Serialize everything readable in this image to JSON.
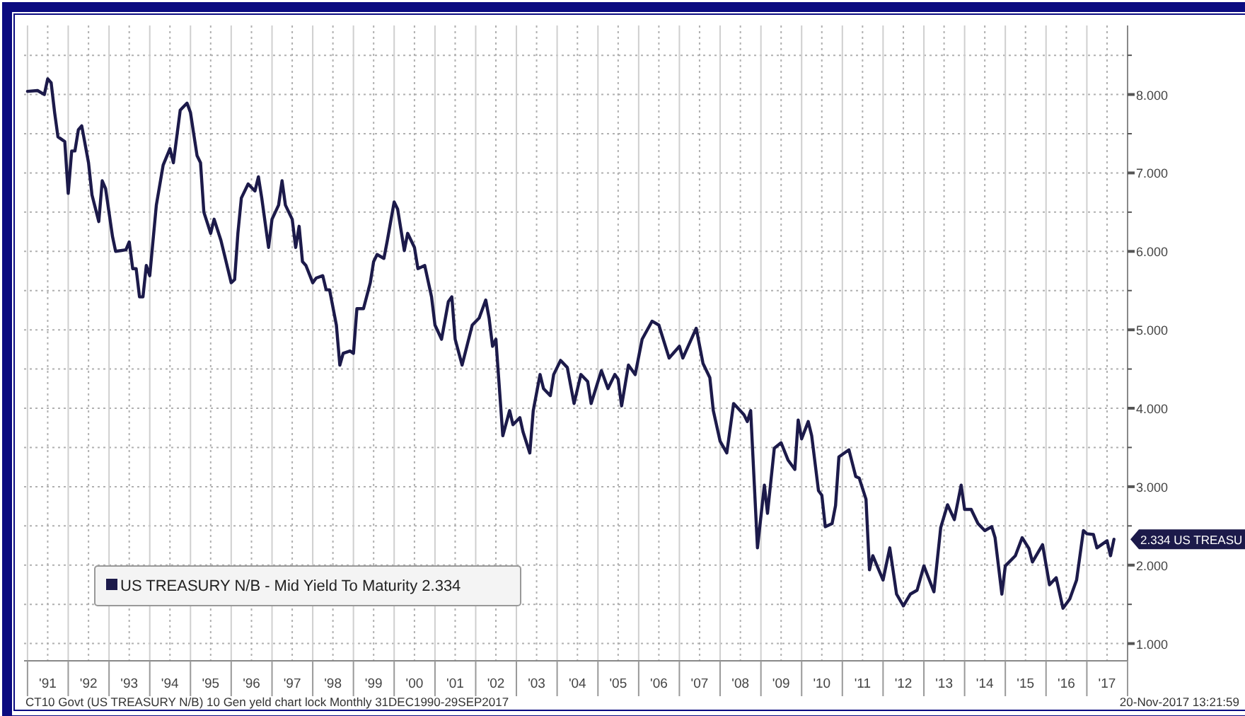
{
  "chart_data": {
    "type": "line",
    "legend": "bottom left",
    "grid": true,
    "marker": "none",
    "line_style": "solid",
    "xlim": [
      "1990-12",
      "2018-01"
    ],
    "ylim": [
      0.78,
      8.88
    ],
    "yticks": [
      {
        "value": 1,
        "label": "1.000"
      },
      {
        "value": 1.5,
        "label": null
      },
      {
        "value": 2,
        "label": "2.000"
      },
      {
        "value": 2.5,
        "label": null
      },
      {
        "value": 3,
        "label": "3.000"
      },
      {
        "value": 3.5,
        "label": null
      },
      {
        "value": 4,
        "label": "4.000"
      },
      {
        "value": 4.5,
        "label": null
      },
      {
        "value": 5,
        "label": "5.000"
      },
      {
        "value": 5.5,
        "label": null
      },
      {
        "value": 6,
        "label": "6.000"
      },
      {
        "value": 6.5,
        "label": null
      },
      {
        "value": 7,
        "label": "7.000"
      },
      {
        "value": 7.5,
        "label": null
      },
      {
        "value": 8,
        "label": "8.000"
      },
      {
        "value": 8.5,
        "label": null
      }
    ],
    "xticks": [
      {
        "value": "1991",
        "label": null
      },
      {
        "value": "1991-07",
        "label": "'91"
      },
      {
        "value": "1992",
        "label": null
      },
      {
        "value": "1992-07",
        "label": "'92"
      },
      {
        "value": "1993",
        "label": null
      },
      {
        "value": "1993-07",
        "label": "'93"
      },
      {
        "value": "1994",
        "label": null
      },
      {
        "value": "1994-07",
        "label": "'94"
      },
      {
        "value": "1995",
        "label": null
      },
      {
        "value": "1995-07",
        "label": "'95"
      },
      {
        "value": "1996",
        "label": null
      },
      {
        "value": "1996-07",
        "label": "'96"
      },
      {
        "value": "1997",
        "label": null
      },
      {
        "value": "1997-07",
        "label": "'97"
      },
      {
        "value": "1998",
        "label": null
      },
      {
        "value": "1998-07",
        "label": "'98"
      },
      {
        "value": "1999",
        "label": null
      },
      {
        "value": "1999-07",
        "label": "'99"
      },
      {
        "value": "2000",
        "label": null
      },
      {
        "value": "2000-07",
        "label": "'00"
      },
      {
        "value": "2001",
        "label": null
      },
      {
        "value": "2001-07",
        "label": "'01"
      },
      {
        "value": "2002",
        "label": null
      },
      {
        "value": "2002-07",
        "label": "'02"
      },
      {
        "value": "2003",
        "label": null
      },
      {
        "value": "2003-07",
        "label": "'03"
      },
      {
        "value": "2004",
        "label": null
      },
      {
        "value": "2004-07",
        "label": "'04"
      },
      {
        "value": "2005",
        "label": null
      },
      {
        "value": "2005-07",
        "label": "'05"
      },
      {
        "value": "2006",
        "label": null
      },
      {
        "value": "2006-07",
        "label": "'06"
      },
      {
        "value": "2007",
        "label": null
      },
      {
        "value": "2007-07",
        "label": "'07"
      },
      {
        "value": "2008",
        "label": null
      },
      {
        "value": "2008-07",
        "label": "'08"
      },
      {
        "value": "2009",
        "label": null
      },
      {
        "value": "2009-07",
        "label": "'09"
      },
      {
        "value": "2010",
        "label": null
      },
      {
        "value": "2010-07",
        "label": "'10"
      },
      {
        "value": "2011",
        "label": null
      },
      {
        "value": "2011-07",
        "label": "'11"
      },
      {
        "value": "2012",
        "label": null
      },
      {
        "value": "2012-07",
        "label": "'12"
      },
      {
        "value": "2013",
        "label": null
      },
      {
        "value": "2013-07",
        "label": "'13"
      },
      {
        "value": "2014",
        "label": null
      },
      {
        "value": "2014-07",
        "label": "'14"
      },
      {
        "value": "2015",
        "label": null
      },
      {
        "value": "2015-07",
        "label": "'15"
      },
      {
        "value": "2016",
        "label": null
      },
      {
        "value": "2016-07",
        "label": "'16"
      },
      {
        "value": "2017",
        "label": null
      },
      {
        "value": "2017-07",
        "label": "'17"
      },
      {
        "value": "2018",
        "label": null
      }
    ],
    "annotations": [
      "CT10 Govt (US TREASURY N/B) 10 Gen yeld chart lock  Monthly 31DEC1990-29SEP2017",
      "20-Nov-2017 13:21:59",
      "2.334 US TREASU"
    ],
    "series": [
      {
        "name": "US TREASURY N/B - Mid Yield To Maturity 2.334",
        "color": "#1c1a4a",
        "x": [
          "1991-01",
          "1991-04",
          "1991-06",
          "1991-07",
          "1991-08",
          "1991-09",
          "1991-10",
          "1991-12",
          "1992-01",
          "1992-02",
          "1992-03",
          "1992-04",
          "1992-05",
          "1992-07",
          "1992-08",
          "1992-10",
          "1992-11",
          "1992-12",
          "1993-02",
          "1993-03",
          "1993-06",
          "1993-07",
          "1993-08",
          "1993-09",
          "1993-10",
          "1993-11",
          "1993-12",
          "1994-01",
          "1994-03",
          "1994-05",
          "1994-07",
          "1994-08",
          "1994-10",
          "1994-12",
          "1995-01",
          "1995-03",
          "1995-04",
          "1995-05",
          "1995-07",
          "1995-08",
          "1995-10",
          "1995-11",
          "1996-01",
          "1996-02",
          "1996-03",
          "1996-04",
          "1996-06",
          "1996-08",
          "1996-09",
          "1996-10",
          "1996-12",
          "1997-01",
          "1997-03",
          "1997-04",
          "1997-05",
          "1997-07",
          "1997-08",
          "1997-09",
          "1997-10",
          "1997-11",
          "1998-01",
          "1998-02",
          "1998-04",
          "1998-05",
          "1998-06",
          "1998-08",
          "1998-09",
          "1998-10",
          "1998-12",
          "1999-01",
          "1999-02",
          "1999-04",
          "1999-06",
          "1999-07",
          "1999-08",
          "1999-10",
          "1999-11",
          "2000-01",
          "2000-02",
          "2000-04",
          "2000-05",
          "2000-07",
          "2000-08",
          "2000-10",
          "2000-12",
          "2001-01",
          "2001-03",
          "2001-05",
          "2001-06",
          "2001-07",
          "2001-09",
          "2001-12",
          "2002-02",
          "2002-04",
          "2002-05",
          "2002-06",
          "2002-07",
          "2002-09",
          "2002-11",
          "2002-12",
          "2003-02",
          "2003-03",
          "2003-05",
          "2003-06",
          "2003-08",
          "2003-09",
          "2003-11",
          "2003-12",
          "2004-02",
          "2004-04",
          "2004-06",
          "2004-08",
          "2004-10",
          "2004-11",
          "2005-01",
          "2005-02",
          "2005-04",
          "2005-06",
          "2005-07",
          "2005-08",
          "2005-10",
          "2005-12",
          "2006-02",
          "2006-05",
          "2006-07",
          "2006-10",
          "2007-01",
          "2007-02",
          "2007-06",
          "2007-08",
          "2007-10",
          "2007-11",
          "2008-01",
          "2008-03",
          "2008-05",
          "2008-08",
          "2008-09",
          "2008-10",
          "2008-12",
          "2009-02",
          "2009-03",
          "2009-05",
          "2009-07",
          "2009-09",
          "2009-11",
          "2009-12",
          "2010-01",
          "2010-03",
          "2010-04",
          "2010-06",
          "2010-07",
          "2010-08",
          "2010-10",
          "2010-11",
          "2010-12",
          "2011-03",
          "2011-05",
          "2011-06",
          "2011-08",
          "2011-09",
          "2011-10",
          "2012-01",
          "2012-03",
          "2012-05",
          "2012-07",
          "2012-09",
          "2012-11",
          "2013-01",
          "2013-04",
          "2013-06",
          "2013-08",
          "2013-10",
          "2013-12",
          "2014-01",
          "2014-03",
          "2014-05",
          "2014-07",
          "2014-09",
          "2014-10",
          "2014-12",
          "2015-01",
          "2015-04",
          "2015-06",
          "2015-08",
          "2015-09",
          "2015-12",
          "2016-02",
          "2016-04",
          "2016-06",
          "2016-08",
          "2016-10",
          "2016-12",
          "2017-01",
          "2017-03",
          "2017-04",
          "2017-07",
          "2017-08",
          "2017-09"
        ],
        "values": [
          8.04,
          8.05,
          8,
          8.2,
          8.15,
          7.77,
          7.46,
          7.4,
          6.74,
          7.28,
          7.28,
          7.55,
          7.6,
          7.13,
          6.72,
          6.38,
          6.9,
          6.8,
          6.19,
          6,
          6.02,
          6.12,
          5.78,
          5.78,
          5.42,
          5.42,
          5.82,
          5.69,
          6.59,
          7.1,
          7.31,
          7.13,
          7.8,
          7.89,
          7.77,
          7.22,
          7.13,
          6.5,
          6.23,
          6.41,
          6.14,
          5.96,
          5.6,
          5.64,
          6.23,
          6.68,
          6.86,
          6.77,
          6.95,
          6.68,
          6.05,
          6.41,
          6.59,
          6.9,
          6.59,
          6.41,
          6.05,
          6.32,
          5.87,
          5.82,
          5.6,
          5.66,
          5.69,
          5.51,
          5.51,
          5.06,
          4.55,
          4.7,
          4.73,
          4.7,
          5.27,
          5.27,
          5.6,
          5.87,
          5.96,
          5.91,
          6.14,
          6.63,
          6.54,
          6.01,
          6.23,
          6.05,
          5.78,
          5.82,
          5.42,
          5.06,
          4.88,
          5.36,
          5.42,
          4.88,
          4.55,
          5.06,
          5.15,
          5.38,
          5.15,
          4.79,
          4.88,
          3.65,
          3.97,
          3.79,
          3.88,
          3.7,
          3.43,
          3.97,
          4.43,
          4.25,
          4.16,
          4.43,
          4.61,
          4.52,
          4.06,
          4.43,
          4.34,
          4.06,
          4.34,
          4.48,
          4.25,
          4.43,
          4.37,
          4.03,
          4.55,
          4.43,
          4.88,
          5.11,
          5.06,
          4.64,
          4.79,
          4.64,
          5.02,
          4.57,
          4.39,
          3.97,
          3.58,
          3.43,
          4.06,
          3.92,
          3.83,
          3.97,
          2.22,
          3.02,
          2.66,
          3.49,
          3.56,
          3.34,
          3.22,
          3.85,
          3.61,
          3.83,
          3.65,
          2.95,
          2.89,
          2.49,
          2.53,
          2.76,
          3.38,
          3.47,
          3.13,
          3.11,
          2.84,
          1.94,
          2.12,
          1.81,
          2.22,
          1.63,
          1.48,
          1.63,
          1.68,
          1.99,
          1.66,
          2.48,
          2.77,
          2.58,
          3.02,
          2.71,
          2.71,
          2.53,
          2.44,
          2.49,
          2.35,
          1.63,
          1.99,
          2.12,
          2.35,
          2.21,
          2.04,
          2.26,
          1.75,
          1.84,
          1.45,
          1.57,
          1.81,
          2.44,
          2.4,
          2.39,
          2.22,
          2.31,
          2.12,
          2.33
        ]
      }
    ]
  }
}
